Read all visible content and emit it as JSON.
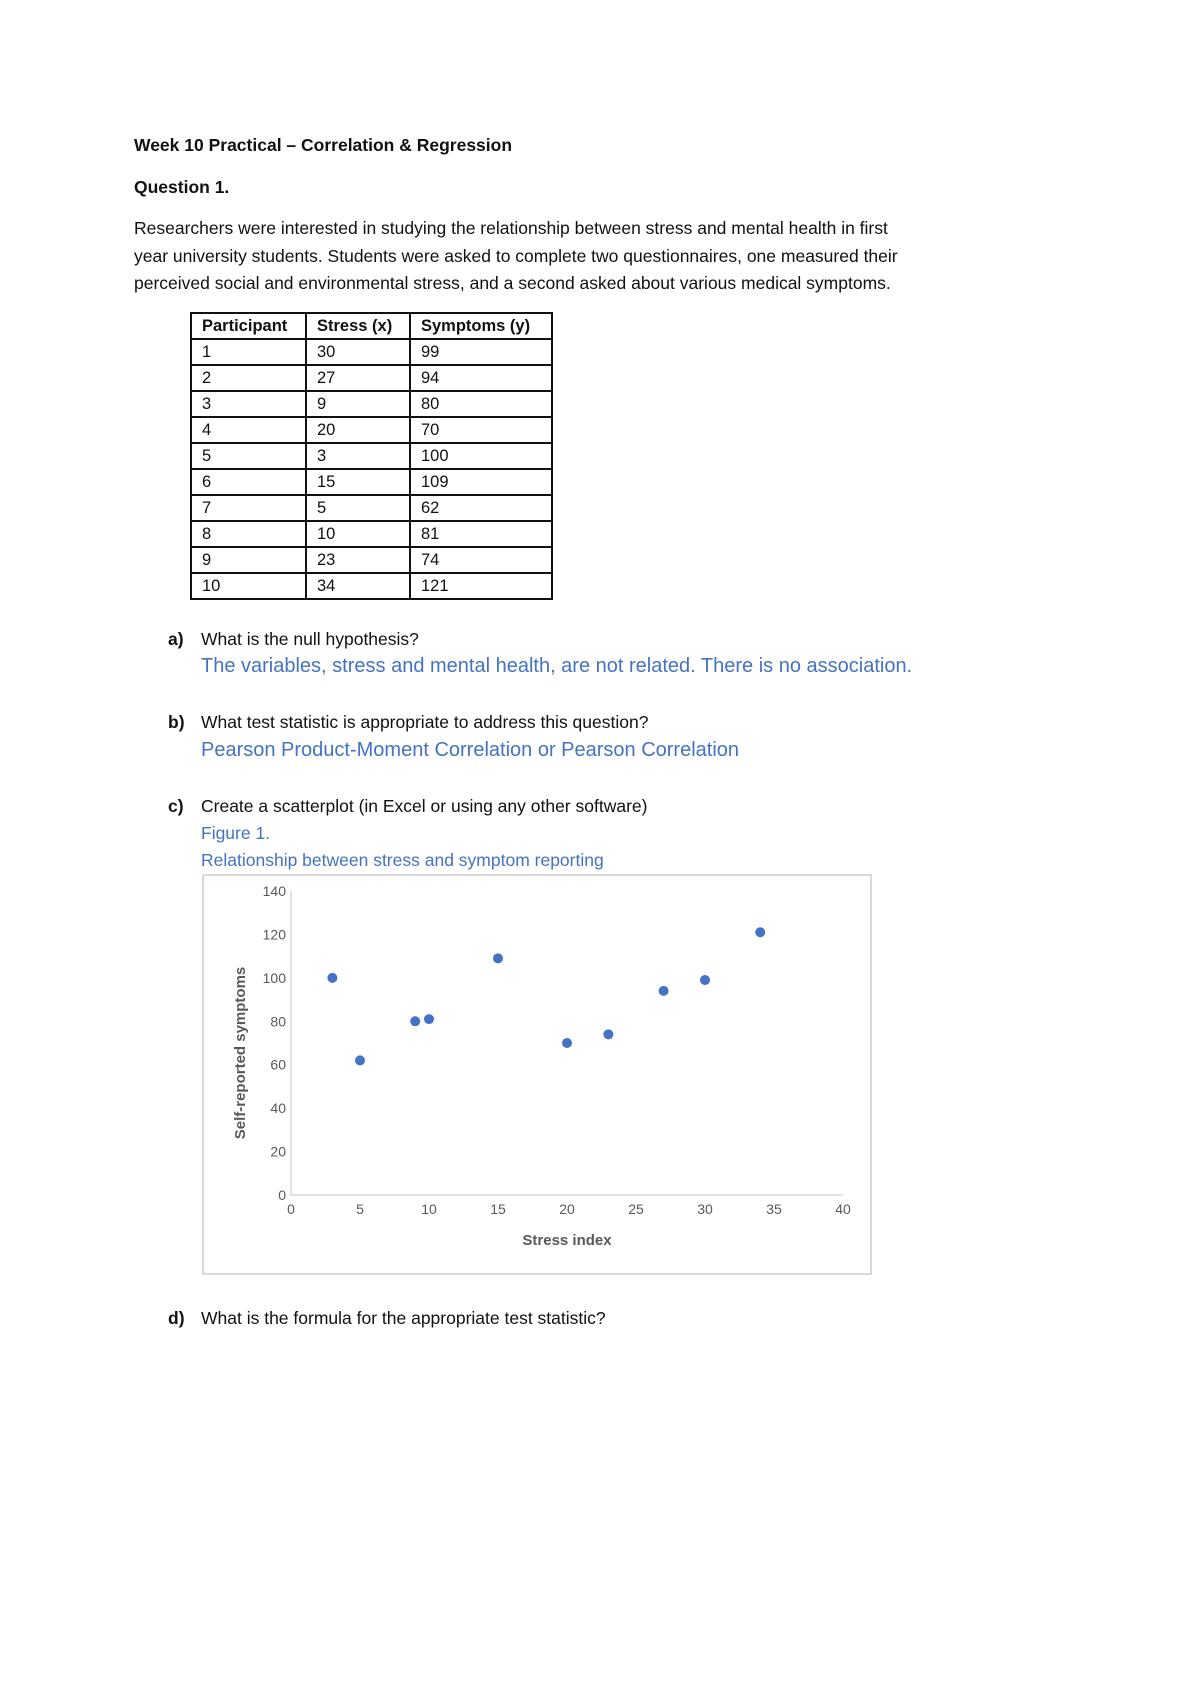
{
  "title": "Week 10 Practical – Correlation & Regression",
  "question": "Question 1.",
  "intro": [
    "Researchers were interested in studying the relationship between stress and mental health in first",
    "year university students. Students were asked to complete two questionnaires, one measured their",
    "perceived social and environmental stress, and a second asked about various medical symptoms."
  ],
  "table": {
    "headers": [
      "Participant",
      "Stress (x)",
      "Symptoms (y)"
    ],
    "rows": [
      [
        "1",
        "30",
        "99"
      ],
      [
        "2",
        "27",
        "94"
      ],
      [
        "3",
        "9",
        "80"
      ],
      [
        "4",
        "20",
        "70"
      ],
      [
        "5",
        "3",
        "100"
      ],
      [
        "6",
        "15",
        "109"
      ],
      [
        "7",
        "5",
        "62"
      ],
      [
        "8",
        "10",
        "81"
      ],
      [
        "9",
        "23",
        "74"
      ],
      [
        "10",
        "34",
        "121"
      ]
    ]
  },
  "parts": {
    "a": {
      "label": "a)",
      "question": "What is the null hypothesis?",
      "answer": "The variables, stress and mental health, are not related. There is no association."
    },
    "b": {
      "label": "b)",
      "question": "What test statistic is appropriate to address this question?",
      "answer": "Pearson Product-Moment Correlation or Pearson Correlation"
    },
    "c": {
      "label": "c)",
      "question": "Create a scatterplot (in Excel or using any other software)",
      "figure_label": "Figure 1.",
      "figure_caption": "Relationship between stress and symptom reporting"
    },
    "d": {
      "label": "d)",
      "question": "What is the formula for the appropriate test statistic?"
    }
  },
  "colors": {
    "answer": "#4472c4",
    "marker": "#4472c4",
    "axis": "#d9d9d9"
  },
  "chart_data": {
    "type": "scatter",
    "xlabel": "Stress index",
    "ylabel": "Self-reported symptoms",
    "xlim": [
      0,
      40
    ],
    "ylim": [
      0,
      140
    ],
    "xticks": [
      0,
      5,
      10,
      15,
      20,
      25,
      30,
      35,
      40
    ],
    "yticks": [
      0,
      20,
      40,
      60,
      80,
      100,
      120,
      140
    ],
    "grid": false,
    "x": [
      30,
      27,
      9,
      20,
      3,
      15,
      5,
      10,
      23,
      34
    ],
    "y": [
      99,
      94,
      80,
      70,
      100,
      109,
      62,
      81,
      74,
      121
    ]
  }
}
